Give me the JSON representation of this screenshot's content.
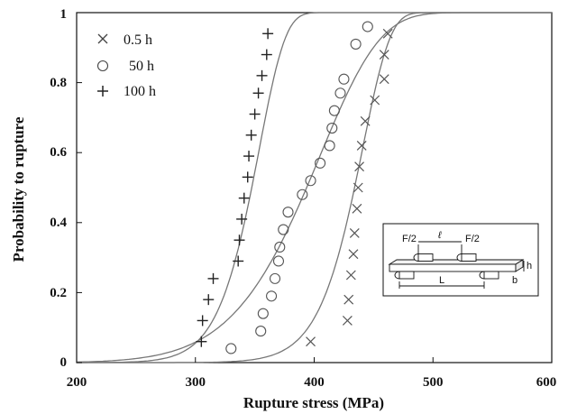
{
  "chart_data": {
    "type": "scatter",
    "xlabel": "Rupture stress (MPa)",
    "ylabel": "Probability to rupture",
    "xlim": [
      200,
      600
    ],
    "ylim": [
      0,
      1
    ],
    "x_ticks": [
      "200",
      "300",
      "400",
      "500",
      "600"
    ],
    "y_ticks": [
      "0",
      "0.2",
      "0.4",
      "0.6",
      "0.8",
      "1"
    ],
    "legend_position": "top-left",
    "grid": false,
    "series": [
      {
        "name": "0.5 h",
        "marker": "x",
        "points": [
          [
            397,
            0.06
          ],
          [
            428,
            0.12
          ],
          [
            429,
            0.18
          ],
          [
            431,
            0.25
          ],
          [
            433,
            0.31
          ],
          [
            434,
            0.37
          ],
          [
            436,
            0.44
          ],
          [
            437,
            0.5
          ],
          [
            438,
            0.56
          ],
          [
            440,
            0.62
          ],
          [
            443,
            0.69
          ],
          [
            451,
            0.75
          ],
          [
            459,
            0.81
          ],
          [
            459,
            0.88
          ],
          [
            462,
            0.94
          ]
        ],
        "fit_curve": {
          "scale": 442,
          "shape": 20
        }
      },
      {
        "name": "50 h",
        "marker": "o",
        "points": [
          [
            330,
            0.04
          ],
          [
            355,
            0.09
          ],
          [
            357,
            0.14
          ],
          [
            364,
            0.19
          ],
          [
            367,
            0.24
          ],
          [
            370,
            0.29
          ],
          [
            371,
            0.33
          ],
          [
            374,
            0.38
          ],
          [
            378,
            0.43
          ],
          [
            390,
            0.48
          ],
          [
            397,
            0.52
          ],
          [
            405,
            0.57
          ],
          [
            413,
            0.62
          ],
          [
            415,
            0.67
          ],
          [
            417,
            0.72
          ],
          [
            422,
            0.77
          ],
          [
            425,
            0.81
          ],
          [
            435,
            0.91
          ],
          [
            445,
            0.96
          ]
        ],
        "fit_curve": {
          "scale": 410,
          "shape": 9
        }
      },
      {
        "name": "100 h",
        "marker": "+",
        "points": [
          [
            305,
            0.06
          ],
          [
            306,
            0.12
          ],
          [
            311,
            0.18
          ],
          [
            315,
            0.24
          ],
          [
            336,
            0.29
          ],
          [
            337,
            0.35
          ],
          [
            339,
            0.41
          ],
          [
            341,
            0.47
          ],
          [
            344,
            0.53
          ],
          [
            345,
            0.59
          ],
          [
            347,
            0.65
          ],
          [
            350,
            0.71
          ],
          [
            353,
            0.77
          ],
          [
            356,
            0.82
          ],
          [
            360,
            0.88
          ],
          [
            361,
            0.94
          ]
        ],
        "fit_curve": {
          "scale": 355,
          "shape": 17
        }
      }
    ],
    "inset": {
      "labels": [
        "F/2",
        "F/2",
        "ℓ",
        "L",
        "h",
        "b"
      ]
    }
  }
}
